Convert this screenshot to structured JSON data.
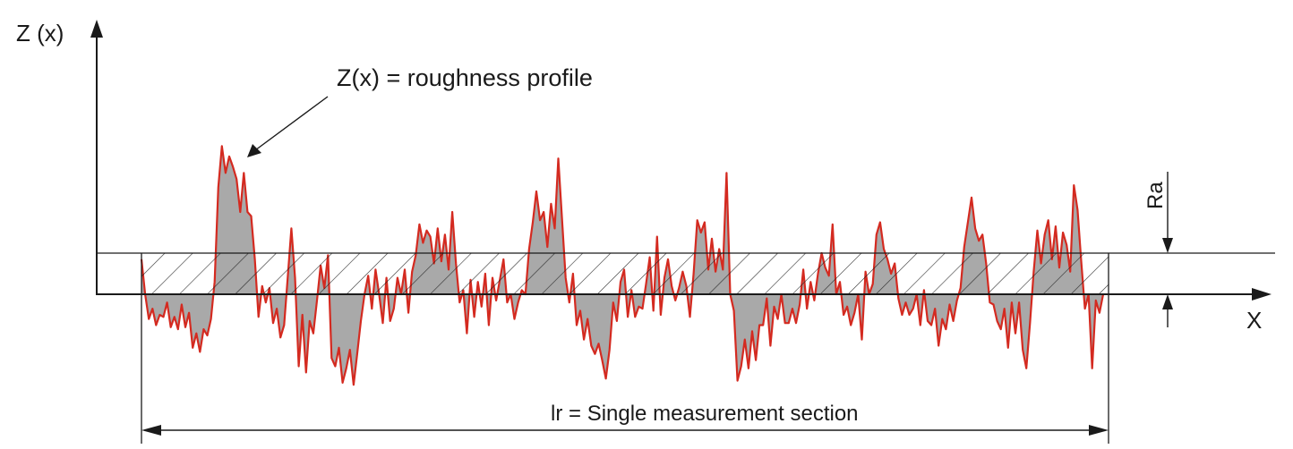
{
  "labels": {
    "z_axis": "Z (x)",
    "x_axis": "X",
    "profile_callout": "Z(x) = roughness profile",
    "ra": "Ra",
    "lr_prefix": "lr",
    "lr_equals": "=",
    "lr_text": "Single measurement section"
  },
  "colors": {
    "profile_line": "#d42a20",
    "profile_fill": "#a9a9a9",
    "axis": "#1a1a1a",
    "hatch": "#1a1a1a"
  },
  "chart_data": {
    "type": "area",
    "description_units": "relative height (mean line = 0, Ra band top = 1)",
    "profile_z": [
      0.85,
      0.0,
      -0.6,
      -0.35,
      -0.75,
      -0.5,
      -0.55,
      -0.2,
      -0.8,
      -0.55,
      -0.85,
      -0.25,
      -0.8,
      -0.45,
      -1.3,
      -0.95,
      -1.4,
      -0.85,
      -1.0,
      -0.6,
      0.3,
      2.6,
      3.6,
      2.95,
      3.35,
      3.1,
      2.8,
      2.0,
      2.95,
      2.0,
      1.9,
      0.85,
      -0.55,
      0.2,
      -0.2,
      0.15,
      -0.7,
      -0.35,
      -1.05,
      -0.75,
      0.4,
      1.6,
      0.4,
      -1.75,
      -0.5,
      -1.9,
      -0.65,
      -0.95,
      -0.15,
      0.7,
      0.15,
      0.95,
      -1.55,
      -1.75,
      -1.3,
      -2.15,
      -1.8,
      -1.35,
      -2.2,
      -1.45,
      -0.65,
      0.0,
      0.45,
      -0.35,
      0.6,
      0.0,
      -0.7,
      0.4,
      -0.65,
      -0.35,
      0.4,
      0.0,
      0.6,
      -0.45,
      0.55,
      0.95,
      1.7,
      1.25,
      1.55,
      1.4,
      0.75,
      1.6,
      0.8,
      1.45,
      0.6,
      2.0,
      0.75,
      -0.2,
      0.1,
      -0.95,
      0.35,
      -0.55,
      0.3,
      -0.3,
      0.5,
      -0.75,
      0.4,
      -0.15,
      0.35,
      0.85,
      -0.2,
      0.0,
      -0.6,
      -0.2,
      0.1,
      0.0,
      1.1,
      1.75,
      2.5,
      1.8,
      2.0,
      1.15,
      2.2,
      1.6,
      3.3,
      1.85,
      0.4,
      -0.2,
      0.5,
      -0.75,
      -0.4,
      -1.1,
      -0.6,
      -1.25,
      -1.45,
      -1.2,
      -1.6,
      -2.05,
      -1.35,
      -0.2,
      -0.65,
      0.3,
      0.6,
      -0.55,
      0.1,
      -0.55,
      -0.3,
      -0.35,
      0.25,
      0.9,
      -0.4,
      1.4,
      -0.5,
      0.4,
      0.85,
      0.2,
      -0.15,
      0.15,
      0.55,
      0.2,
      -0.55,
      0.5,
      1.8,
      1.5,
      1.75,
      0.6,
      1.35,
      0.55,
      1.1,
      0.6,
      2.95,
      0.0,
      -0.4,
      -2.1,
      -1.75,
      -1.1,
      -1.8,
      -0.9,
      -1.6,
      -0.75,
      -0.75,
      -0.1,
      -1.25,
      -0.3,
      -0.6,
      0.0,
      -0.7,
      -0.7,
      -0.35,
      -0.7,
      -0.25,
      0.6,
      -0.35,
      0.3,
      -0.15,
      0.5,
      1.0,
      0.65,
      0.45,
      1.7,
      0.0,
      0.3,
      -0.5,
      -0.3,
      -0.75,
      -0.45,
      0.0,
      -1.1,
      0.55,
      0.0,
      0.25,
      1.45,
      1.75,
      1.1,
      0.85,
      0.5,
      0.75,
      -0.1,
      -0.5,
      -0.2,
      -0.5,
      -0.35,
      0.0,
      -0.75,
      0.1,
      -0.65,
      -0.75,
      -0.35,
      -1.25,
      -0.6,
      -0.85,
      -0.25,
      -0.65,
      -0.15,
      0.15,
      1.15,
      1.75,
      2.35,
      1.6,
      1.3,
      1.45,
      0.75,
      -0.2,
      -0.25,
      -0.65,
      -0.85,
      -0.35,
      -1.3,
      -0.2,
      -0.95,
      -0.2,
      -1.35,
      -1.8,
      -0.7,
      0.55,
      1.55,
      0.75,
      1.45,
      1.8,
      0.85,
      1.65,
      0.65,
      1.5,
      1.2,
      0.55,
      2.65,
      2.05,
      0.8,
      -0.35,
      0.0,
      -1.8,
      -0.15,
      -0.45,
      0.0
    ]
  }
}
